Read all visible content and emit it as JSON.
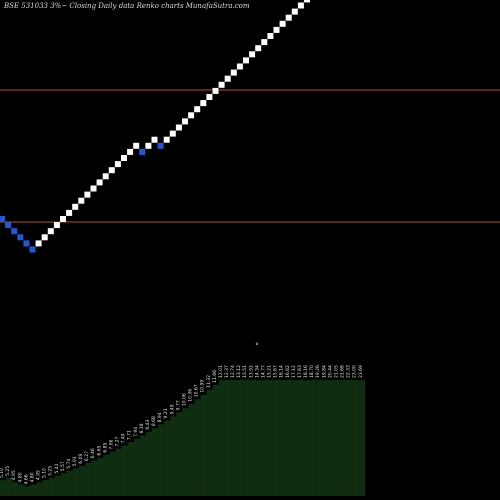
{
  "header": {
    "title": "BSE 531033 3%~  Closing Daily data  Renko  charts MunafaSutra.com"
  },
  "chart_data": [
    {
      "type": "renko",
      "title": "BSE 531033 3%~  Closing Daily data  Renko  charts MunafaSutra.com",
      "brick_colors": {
        "up": "#ffffff",
        "down": "#1e5ad7"
      },
      "reference_line_color": "#b4501e",
      "bricks": [
        "down",
        "down",
        "down",
        "down",
        "down",
        "down",
        "up",
        "up",
        "up",
        "up",
        "up",
        "up",
        "up",
        "up",
        "up",
        "up",
        "up",
        "up",
        "up",
        "up",
        "up",
        "up",
        "up",
        "down",
        "up",
        "up",
        "down",
        "up",
        "up",
        "up",
        "up",
        "up",
        "up",
        "up",
        "up",
        "up",
        "up",
        "up",
        "up",
        "up",
        "up",
        "up",
        "up",
        "up",
        "up",
        "up",
        "up",
        "up",
        "up",
        "up",
        "up",
        "up",
        "up",
        "up",
        "up",
        "up",
        "up",
        "up",
        "up",
        "up"
      ],
      "reference_lines": 2
    },
    {
      "type": "bar",
      "bar_color": "#0f2d0f",
      "marker": "o",
      "categories": [
        "5.10",
        "5.25",
        "4.95",
        "4.80",
        "4.66",
        "4.80",
        "4.95",
        "5.10",
        "5.25",
        "5.41",
        "5.57",
        "5.74",
        "5.91",
        "6.09",
        "6.27",
        "6.46",
        "6.65",
        "6.85",
        "7.06",
        "7.27",
        "7.49",
        "7.71",
        "7.94",
        "8.18",
        "8.43",
        "8.68",
        "8.94",
        "9.21",
        "9.49",
        "9.77",
        "10.06",
        "10.36",
        "10.67",
        "10.99",
        "11.32",
        "11.66",
        "12.01",
        "12.37",
        "12.74",
        "13.12",
        "13.51",
        "13.92",
        "14.34",
        "14.77",
        "15.21",
        "15.67",
        "16.14",
        "16.62",
        "17.12",
        "17.63",
        "18.16",
        "18.70",
        "19.26",
        "19.84",
        "20.44",
        "21.05",
        "21.68",
        "22.33",
        "23.00",
        "23.69"
      ],
      "values": [
        5.1,
        5.25,
        4.95,
        4.8,
        4.66,
        4.8,
        4.95,
        5.1,
        5.25,
        5.41,
        5.57,
        5.74,
        5.91,
        6.09,
        6.27,
        6.46,
        6.65,
        6.85,
        7.06,
        7.27,
        7.49,
        7.71,
        7.94,
        8.18,
        8.43,
        8.68,
        8.94,
        9.21,
        9.49,
        9.77,
        10.06,
        10.36,
        10.67,
        10.99,
        11.32,
        11.66,
        12.01,
        12.37,
        12.74,
        13.12,
        13.51,
        13.92,
        14.34,
        14.77,
        15.21,
        15.67,
        16.14,
        16.62,
        17.12,
        17.63,
        18.16,
        18.7,
        19.26,
        19.84,
        20.44,
        21.05,
        21.68,
        22.33,
        23.0,
        23.69
      ]
    }
  ]
}
